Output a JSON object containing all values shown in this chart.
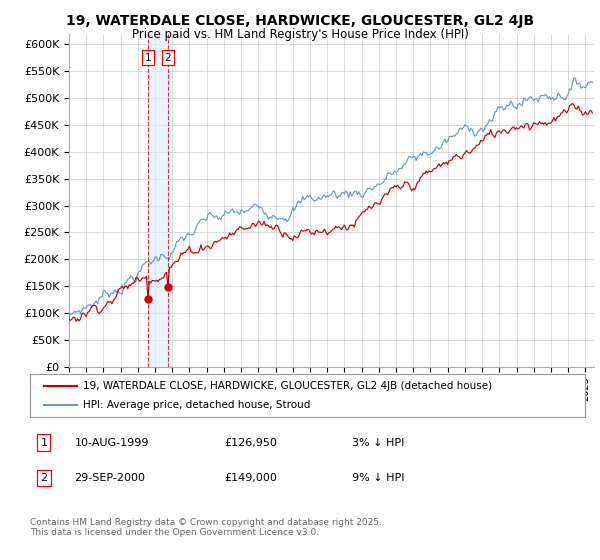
{
  "title": "19, WATERDALE CLOSE, HARDWICKE, GLOUCESTER, GL2 4JB",
  "subtitle": "Price paid vs. HM Land Registry's House Price Index (HPI)",
  "legend_line1": "19, WATERDALE CLOSE, HARDWICKE, GLOUCESTER, GL2 4JB (detached house)",
  "legend_line2": "HPI: Average price, detached house, Stroud",
  "purchase1_date": "10-AUG-1999",
  "purchase1_price": 126950,
  "purchase1_label": "3% ↓ HPI",
  "purchase2_date": "29-SEP-2000",
  "purchase2_price": 149000,
  "purchase2_label": "9% ↓ HPI",
  "purchase1_year": 1999.61,
  "purchase2_year": 2000.75,
  "ylim": [
    0,
    620000
  ],
  "yticks": [
    0,
    50000,
    100000,
    150000,
    200000,
    250000,
    300000,
    350000,
    400000,
    450000,
    500000,
    550000,
    600000
  ],
  "ytick_labels": [
    "£0",
    "£50K",
    "£100K",
    "£150K",
    "£200K",
    "£250K",
    "£300K",
    "£350K",
    "£400K",
    "£450K",
    "£500K",
    "£550K",
    "£600K"
  ],
  "hpi_color": "#6699cc",
  "price_color": "#cc0000",
  "vline_color": "#cc0000",
  "vshade_color": "#ddeeff",
  "footer": "Contains HM Land Registry data © Crown copyright and database right 2025.\nThis data is licensed under the Open Government Licence v3.0.",
  "background_color": "#ffffff",
  "grid_color": "#cccccc",
  "xlim_start": 1995,
  "xlim_end": 2025.5
}
